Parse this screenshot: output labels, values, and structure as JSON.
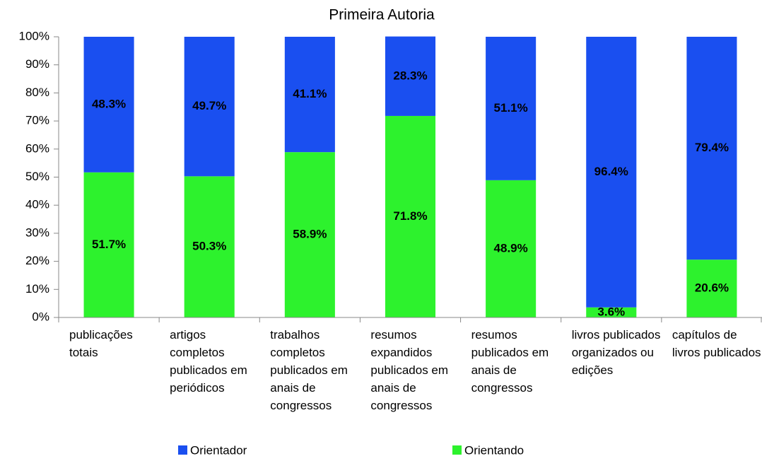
{
  "chart_data": {
    "type": "stacked_bar",
    "title": "Primeira Autoria",
    "categories": [
      "publicações totais",
      "artigos completos publicados em periódicos",
      "trabalhos completos publicados em anais de congressos",
      "resumos expandidos publicados em anais de congressos",
      "resumos publicados em anais de congressos",
      "livros publicados organizados ou edições",
      "capítulos de livros publicados"
    ],
    "series": [
      {
        "name": "Orientador",
        "color": "#1a4ff0",
        "values": [
          48.3,
          49.7,
          41.1,
          28.3,
          51.1,
          96.4,
          79.4
        ],
        "value_labels": [
          "48.3%",
          "49.7%",
          "41.1%",
          "28.3%",
          "51.1%",
          "96.4%",
          "79.4%"
        ]
      },
      {
        "name": "Orientando",
        "color": "#2df22d",
        "values": [
          51.7,
          50.3,
          58.9,
          71.8,
          48.9,
          3.6,
          20.6
        ],
        "value_labels": [
          "51.7%",
          "50.3%",
          "58.9%",
          "71.8%",
          "48.9%",
          "3.6%",
          "20.6%"
        ]
      }
    ],
    "ylim": [
      0,
      100
    ],
    "yticks": [
      {
        "value": 0,
        "label": "0%"
      },
      {
        "value": 10,
        "label": "10%"
      },
      {
        "value": 20,
        "label": "20%"
      },
      {
        "value": 30,
        "label": "30%"
      },
      {
        "value": 40,
        "label": "40%"
      },
      {
        "value": 50,
        "label": "50%"
      },
      {
        "value": 60,
        "label": "60%"
      },
      {
        "value": 70,
        "label": "70%"
      },
      {
        "value": 80,
        "label": "80%"
      },
      {
        "value": 90,
        "label": "90%"
      },
      {
        "value": 100,
        "label": "100%"
      }
    ],
    "legend": "bottom"
  }
}
